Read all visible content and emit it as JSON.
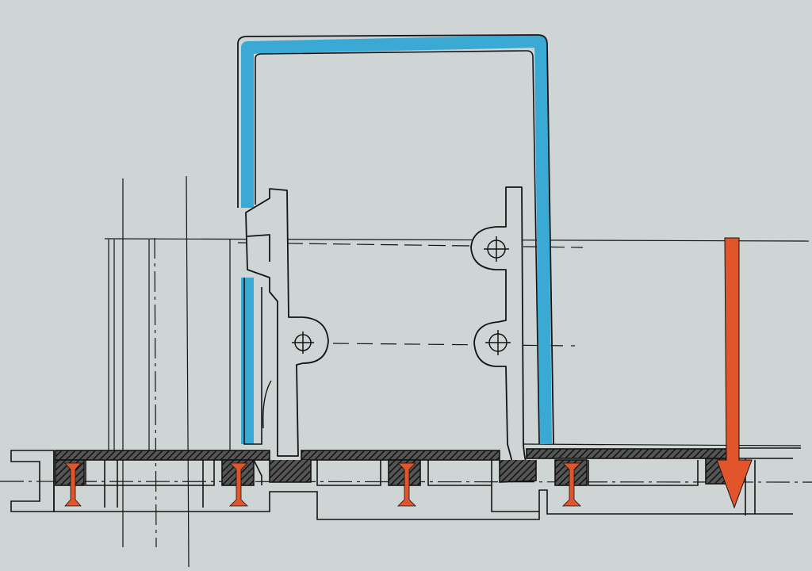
{
  "colors": {
    "paper": "#cfd4d5",
    "ink": "#141414",
    "glass": "#3aa9d3",
    "fastener": "#e2552a",
    "gasket": "#2a2a2a"
  },
  "icons": {
    "bolt_hole": "crosshair-circle-icon",
    "load_arrow": "down-arrow-icon",
    "screw": "countersunk-screw-icon"
  }
}
